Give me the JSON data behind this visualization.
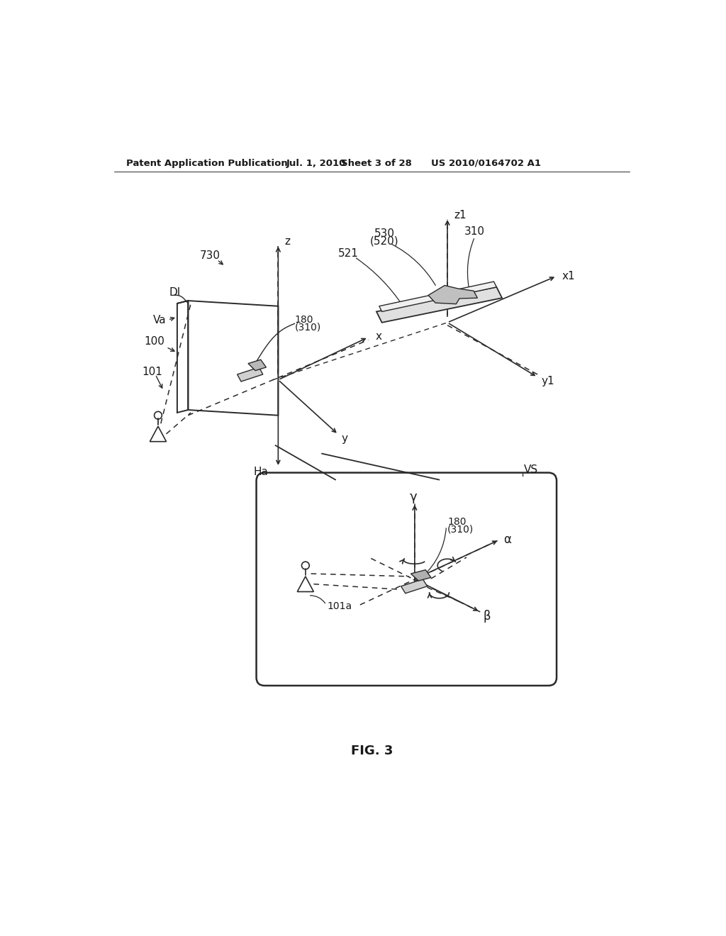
{
  "bg_color": "#ffffff",
  "header_text": "Patent Application Publication",
  "header_date": "Jul. 1, 2010",
  "header_sheet": "Sheet 3 of 28",
  "header_patent": "US 2010/0164702 A1",
  "fig_label": "FIG. 3",
  "lc": "#2a2a2a",
  "tc": "#1a1a1a"
}
